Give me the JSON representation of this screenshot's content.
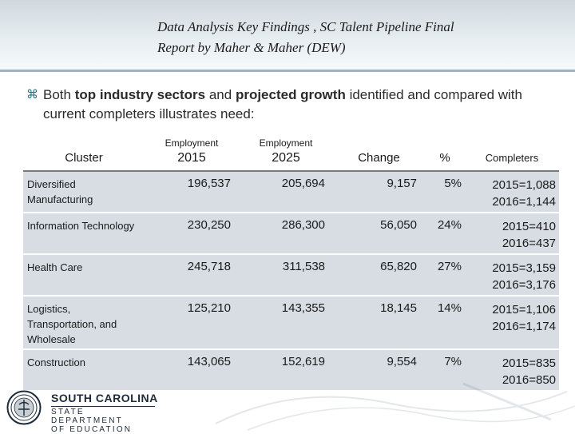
{
  "title": {
    "line1": "Data Analysis Key Findings , SC Talent Pipeline Final",
    "line2": "Report by Maher & Maher (DEW)"
  },
  "bullet": {
    "glyph": "⌘",
    "pre": "Both ",
    "em1": "top industry sectors",
    "mid": " and ",
    "em2": "projected growth",
    "post": " identified and compared with current completers illustrates need:"
  },
  "table": {
    "headers": {
      "cluster": "Cluster",
      "emp2015_top": "Employment",
      "emp2015": "2015",
      "emp2025_top": "Employment",
      "emp2025": "2025",
      "change": "Change",
      "pct": "%",
      "completers": "Completers"
    },
    "rows": [
      {
        "cluster": "Diversified Manufacturing",
        "emp2015": "196,537",
        "emp2025": "205,694",
        "change": "9,157",
        "pct": "5%",
        "comp1": "2015=1,088",
        "comp2": "2016=1,144"
      },
      {
        "cluster": "Information Technology",
        "emp2015": "230,250",
        "emp2025": "286,300",
        "change": "56,050",
        "pct": "24%",
        "comp1": "2015=410",
        "comp2": "2016=437"
      },
      {
        "cluster": "Health Care",
        "emp2015": "245,718",
        "emp2025": "311,538",
        "change": "65,820",
        "pct": "27%",
        "comp1": "2015=3,159",
        "comp2": "2016=3,176"
      },
      {
        "cluster": "Logistics, Transportation, and Wholesale",
        "emp2015": "125,210",
        "emp2025": "143,355",
        "change": "18,145",
        "pct": "14%",
        "comp1": "2015=1,106",
        "comp2": "2016=1,174"
      },
      {
        "cluster": "Construction",
        "emp2015": "143,065",
        "emp2025": "152,619",
        "change": "9,554",
        "pct": "7%",
        "comp1": "2015=835",
        "comp2": "2016=850"
      }
    ]
  },
  "logo": {
    "line1": "SOUTH CAROLINA",
    "line2": "STATE DEPARTMENT",
    "line3": "OF EDUCATION",
    "icon": "state-seal-icon"
  },
  "colors": {
    "title_band": "#dfe7ea",
    "table_row_bg": "#d8dde4",
    "bullet_accent": "#2c6f80",
    "logo_navy": "#1d2b3a"
  }
}
